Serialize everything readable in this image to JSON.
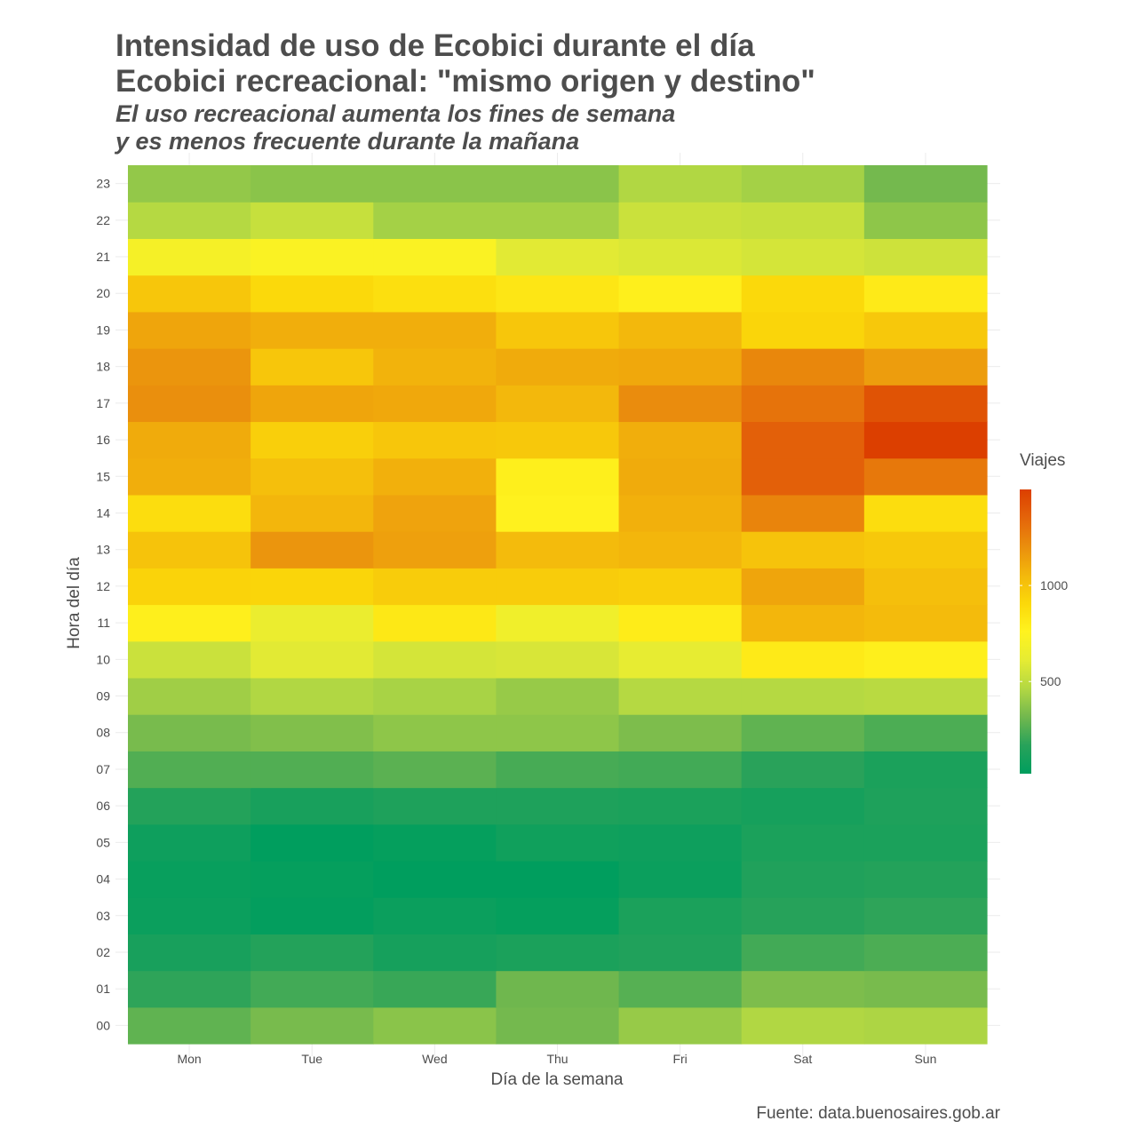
{
  "chart_data": {
    "type": "heatmap",
    "title": "Intensidad de uso de Ecobici durante el día",
    "title_line2": "Ecobici recreacional: \"mismo origen y destino\"",
    "subtitle_line1": "El uso recreacional aumenta los fines de semana",
    "subtitle_line2": "y es menos frecuente durante la mañana",
    "xlabel": "Día de la semana",
    "ylabel": "Hora del día",
    "caption": "Fuente: data.buenosaires.gob.ar",
    "x": [
      "Mon",
      "Tue",
      "Wed",
      "Thu",
      "Fri",
      "Sat",
      "Sun"
    ],
    "y": [
      "00",
      "01",
      "02",
      "03",
      "04",
      "05",
      "06",
      "07",
      "08",
      "09",
      "10",
      "11",
      "12",
      "13",
      "14",
      "15",
      "16",
      "17",
      "18",
      "19",
      "20",
      "21",
      "22",
      "23"
    ],
    "values": [
      [
        280,
        330,
        370,
        320,
        400,
        460,
        450
      ],
      [
        180,
        220,
        200,
        310,
        260,
        340,
        330
      ],
      [
        110,
        150,
        100,
        120,
        140,
        220,
        240
      ],
      [
        60,
        30,
        60,
        40,
        120,
        160,
        180
      ],
      [
        50,
        40,
        20,
        20,
        60,
        140,
        150
      ],
      [
        70,
        20,
        40,
        80,
        70,
        120,
        120
      ],
      [
        150,
        110,
        130,
        130,
        120,
        100,
        130
      ],
      [
        250,
        250,
        270,
        230,
        220,
        170,
        120
      ],
      [
        330,
        350,
        380,
        380,
        340,
        280,
        240
      ],
      [
        420,
        460,
        440,
        400,
        470,
        470,
        480
      ],
      [
        530,
        600,
        560,
        570,
        620,
        810,
        780
      ],
      [
        780,
        640,
        820,
        670,
        800,
        1060,
        1040
      ],
      [
        930,
        920,
        960,
        960,
        950,
        1120,
        1020
      ],
      [
        1000,
        1180,
        1140,
        1040,
        1060,
        1000,
        980
      ],
      [
        880,
        1060,
        1130,
        770,
        1080,
        1240,
        880
      ],
      [
        1090,
        1020,
        1080,
        780,
        1100,
        1370,
        1280
      ],
      [
        1100,
        950,
        990,
        980,
        1090,
        1370,
        1500
      ],
      [
        1200,
        1120,
        1110,
        1050,
        1210,
        1300,
        1420
      ],
      [
        1180,
        990,
        1070,
        1100,
        1110,
        1230,
        1150
      ],
      [
        1120,
        1090,
        1090,
        990,
        1050,
        920,
        980
      ],
      [
        990,
        900,
        870,
        830,
        780,
        900,
        810
      ],
      [
        700,
        730,
        730,
        600,
        580,
        560,
        540
      ],
      [
        470,
        520,
        430,
        430,
        530,
        520,
        380
      ],
      [
        390,
        370,
        370,
        370,
        460,
        430,
        320
      ]
    ],
    "colorbar": {
      "title": "Viajes",
      "ticks": [
        500,
        1000
      ],
      "min": 20,
      "max": 1500,
      "palette": [
        "#009e5e",
        "#28a25a",
        "#72b84e",
        "#b3d843",
        "#e6ec33",
        "#fff31f",
        "#fbd80a",
        "#f3b70c",
        "#ea8e0d",
        "#e4640a",
        "#dc3f00"
      ]
    },
    "grid": true,
    "legend_position": "right"
  }
}
